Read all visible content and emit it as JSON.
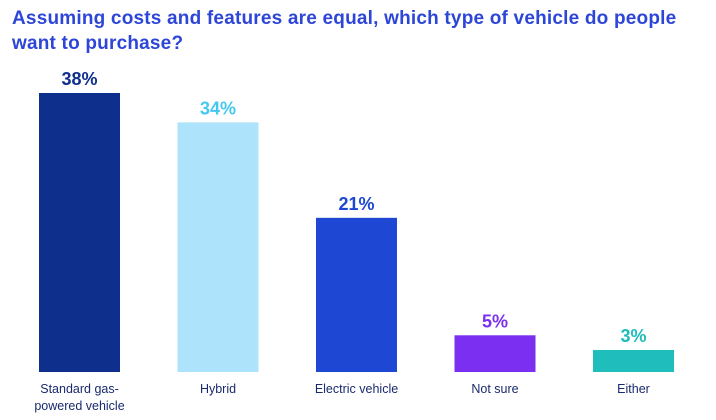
{
  "chart_data": {
    "type": "bar",
    "title": "Assuming costs and features are equal, which type of vehicle do people want to purchase?",
    "categories": [
      [
        "Standard gas-",
        "powered vehicle"
      ],
      [
        "Hybrid"
      ],
      [
        "Electric vehicle"
      ],
      [
        "Not sure"
      ],
      [
        "Either"
      ]
    ],
    "values": [
      38,
      34,
      21,
      5,
      3
    ],
    "value_labels": [
      "38%",
      "34%",
      "21%",
      "5%",
      "3%"
    ],
    "unit": "%",
    "colors": [
      "#0e2f8c",
      "#aee4fb",
      "#1e48d4",
      "#7b2ff0",
      "#1fbdbb"
    ],
    "label_colors": [
      "#0e2f8c",
      "#45c8f0",
      "#1e48d4",
      "#7b2ff0",
      "#1fbdbb"
    ],
    "ylim": [
      0,
      38
    ],
    "grid": false,
    "legend": "none"
  }
}
